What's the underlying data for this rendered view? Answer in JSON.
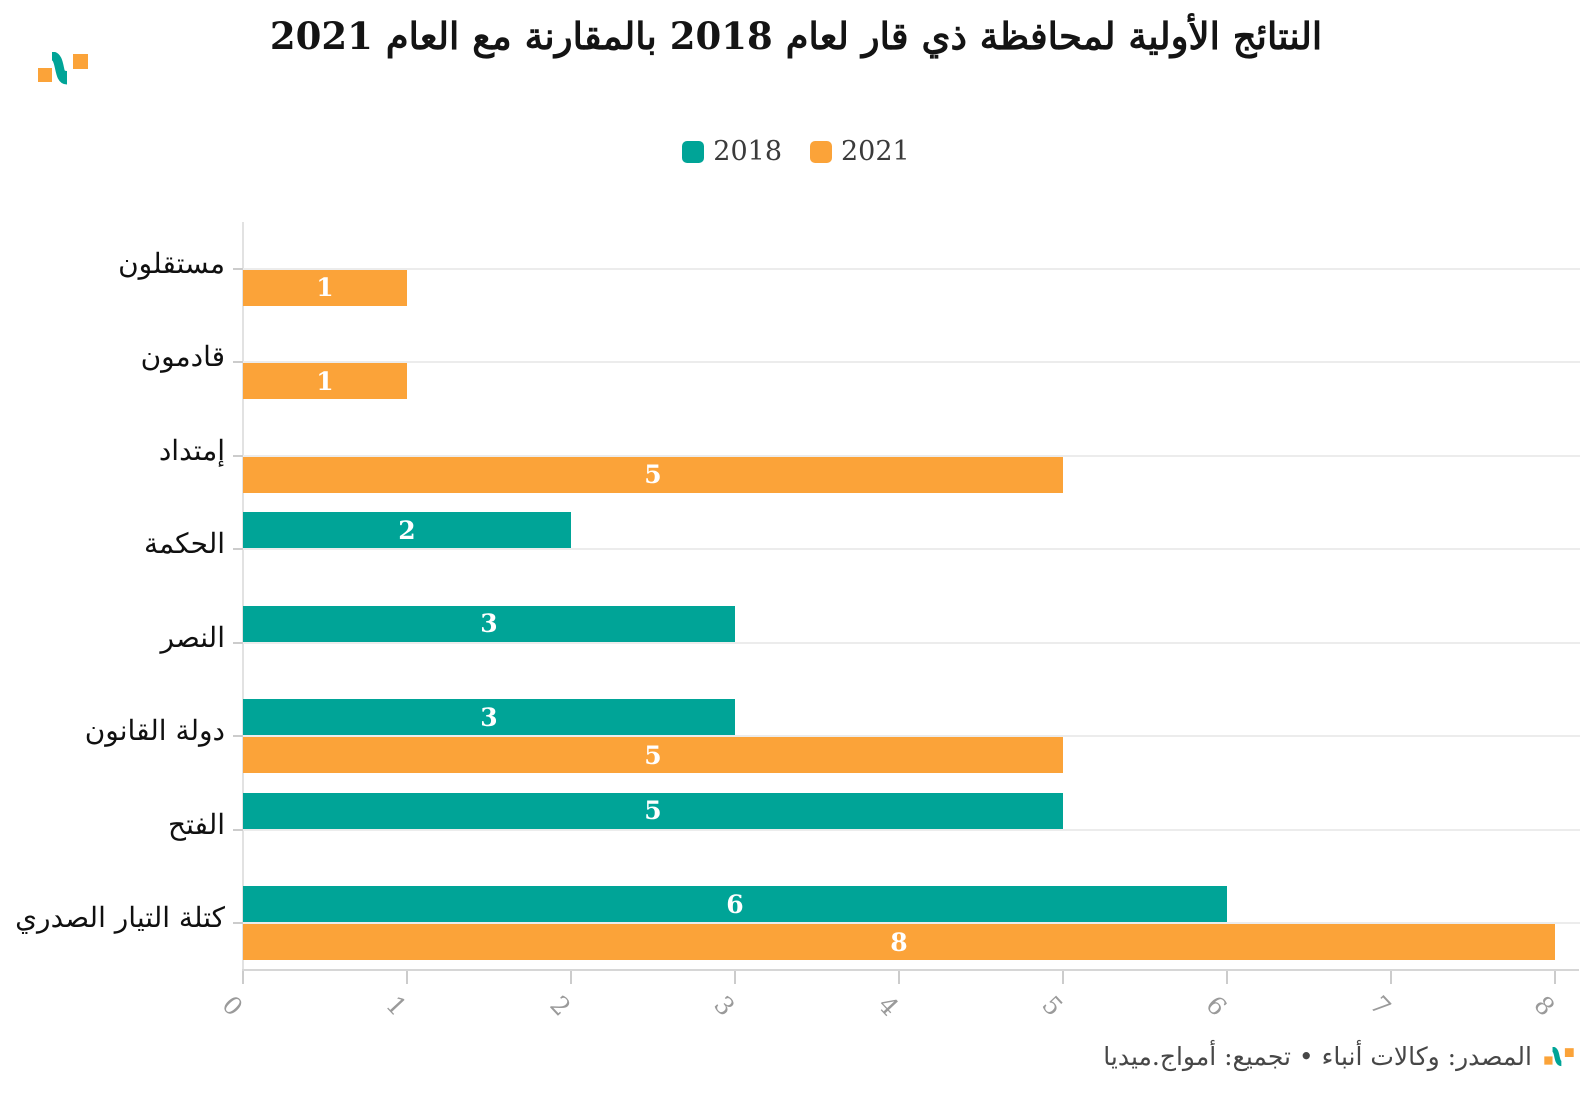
{
  "header": {
    "title": "النتائج الأولية لمحافظة ذي قار لعام 2018 بالمقارنة مع العام 2021"
  },
  "brand": {
    "logo_icon": "amwaj-media-logo",
    "teal": "#00a497",
    "orange": "#fba339"
  },
  "legend": {
    "items": [
      {
        "label": "2018",
        "color": "#00a497"
      },
      {
        "label": "2021",
        "color": "#fba339"
      }
    ]
  },
  "chart_data": {
    "type": "bar",
    "orientation": "horizontal",
    "title": "النتائج الأولية لمحافظة ذي قار لعام 2018 بالمقارنة مع العام 2021",
    "categories": [
      "مستقلون",
      "قادمون",
      "إمتداد",
      "الحكمة",
      "النصر",
      "دولة القانون",
      "الفتح",
      "كتلة التيار الصدري"
    ],
    "series": [
      {
        "name": "2018",
        "color": "#00a497",
        "values": [
          null,
          null,
          null,
          2,
          3,
          3,
          5,
          6
        ]
      },
      {
        "name": "2021",
        "color": "#fba339",
        "values": [
          1,
          1,
          5,
          null,
          null,
          5,
          null,
          8
        ]
      }
    ],
    "xlim": [
      0,
      8
    ],
    "xticks": [
      0,
      1,
      2,
      3,
      4,
      5,
      6,
      7,
      8
    ],
    "grid": "horizontal category lines",
    "legend_position": "top center",
    "value_labels": "white bold, centered inside bars"
  },
  "footer": {
    "source_text": "المصدر: وكالات أنباء • تجميع: أمواج.ميديا",
    "logo_icon": "amwaj-media-logo"
  }
}
